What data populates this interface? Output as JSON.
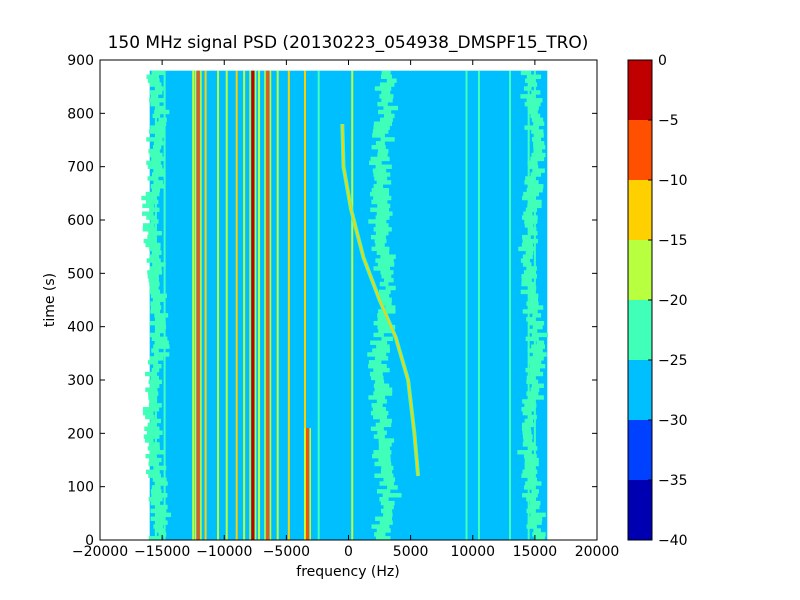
{
  "chart_data": {
    "type": "heatmap",
    "title": "150 MHz signal PSD (20130223_054938_DMSPF15_TRO)",
    "xlabel": "frequency (Hz)",
    "ylabel": "time (s)",
    "xlim": [
      -20000,
      20000
    ],
    "ylim": [
      0,
      900
    ],
    "xticks": [
      -20000,
      -15000,
      -10000,
      -5000,
      0,
      5000,
      10000,
      15000,
      20000
    ],
    "yticks": [
      0,
      100,
      200,
      300,
      400,
      500,
      600,
      700,
      800,
      900
    ],
    "data_extent": {
      "x": [
        -16000,
        16000
      ],
      "y": [
        0,
        880
      ]
    },
    "background_level": -27,
    "colorbar": {
      "range": [
        -40,
        0
      ],
      "ticks": [
        0,
        -5,
        -10,
        -15,
        -20,
        -25,
        -30,
        -35,
        -40
      ],
      "levels": [
        {
          "min": -40,
          "max": -35,
          "color": "#0000b3"
        },
        {
          "min": -35,
          "max": -30,
          "color": "#0040ff"
        },
        {
          "min": -30,
          "max": -25,
          "color": "#00bfff"
        },
        {
          "min": -25,
          "max": -20,
          "color": "#40ffb8"
        },
        {
          "min": -20,
          "max": -15,
          "color": "#b8ff40"
        },
        {
          "min": -15,
          "max": -10,
          "color": "#ffd000"
        },
        {
          "min": -10,
          "max": -5,
          "color": "#ff5000"
        },
        {
          "min": -5,
          "max": 0,
          "color": "#c00000"
        }
      ]
    },
    "vertical_lines": [
      {
        "freq": -15500,
        "level": -22,
        "t": [
          0,
          880
        ]
      },
      {
        "freq": -14800,
        "level": -22,
        "t": [
          0,
          880
        ]
      },
      {
        "freq": -12500,
        "level": -18,
        "t": [
          0,
          880
        ]
      },
      {
        "freq": -12100,
        "level": -8,
        "t": [
          0,
          880
        ]
      },
      {
        "freq": -11500,
        "level": -12,
        "t": [
          0,
          880
        ]
      },
      {
        "freq": -10500,
        "level": -15,
        "t": [
          0,
          880
        ]
      },
      {
        "freq": -9800,
        "level": -18,
        "t": [
          0,
          880
        ]
      },
      {
        "freq": -9000,
        "level": -12,
        "t": [
          0,
          880
        ]
      },
      {
        "freq": -8400,
        "level": -15,
        "t": [
          0,
          880
        ]
      },
      {
        "freq": -7700,
        "level": -3,
        "t": [
          0,
          880
        ]
      },
      {
        "freq": -7200,
        "level": -18,
        "t": [
          0,
          880
        ]
      },
      {
        "freq": -6500,
        "level": -8,
        "t": [
          0,
          880
        ]
      },
      {
        "freq": -5700,
        "level": -18,
        "t": [
          0,
          880
        ]
      },
      {
        "freq": -4800,
        "level": -12,
        "t": [
          0,
          880
        ]
      },
      {
        "freq": -3500,
        "level": -12,
        "t": [
          0,
          880
        ]
      },
      {
        "freq": -3300,
        "level": -8,
        "t": [
          0,
          210
        ]
      },
      {
        "freq": -2400,
        "level": -22,
        "t": [
          0,
          880
        ]
      },
      {
        "freq": 300,
        "level": -18,
        "t": [
          0,
          880
        ]
      },
      {
        "freq": 9500,
        "level": -22,
        "t": [
          0,
          880
        ]
      },
      {
        "freq": 10500,
        "level": -22,
        "t": [
          0,
          880
        ]
      },
      {
        "freq": 13000,
        "level": -22,
        "t": [
          0,
          880
        ]
      },
      {
        "freq": 14500,
        "level": -22,
        "t": [
          0,
          880
        ]
      },
      {
        "freq": 15000,
        "level": -22,
        "t": [
          0,
          880
        ]
      }
    ],
    "noise_bands": [
      {
        "center": 2800,
        "width": 1400,
        "level": -22,
        "t": [
          0,
          880
        ]
      },
      {
        "center": -15500,
        "width": 1200,
        "level": -22,
        "t": [
          0,
          880
        ]
      },
      {
        "center": 14800,
        "width": 1200,
        "level": -22,
        "t": [
          0,
          880
        ]
      }
    ],
    "doppler_trace": {
      "level": -12,
      "points": [
        {
          "f": 5600,
          "t": 120
        },
        {
          "f": 5300,
          "t": 200
        },
        {
          "f": 4800,
          "t": 300
        },
        {
          "f": 3800,
          "t": 380
        },
        {
          "f": 2500,
          "t": 450
        },
        {
          "f": 1200,
          "t": 530
        },
        {
          "f": 200,
          "t": 620
        },
        {
          "f": -400,
          "t": 700
        },
        {
          "f": -500,
          "t": 780
        }
      ]
    }
  }
}
